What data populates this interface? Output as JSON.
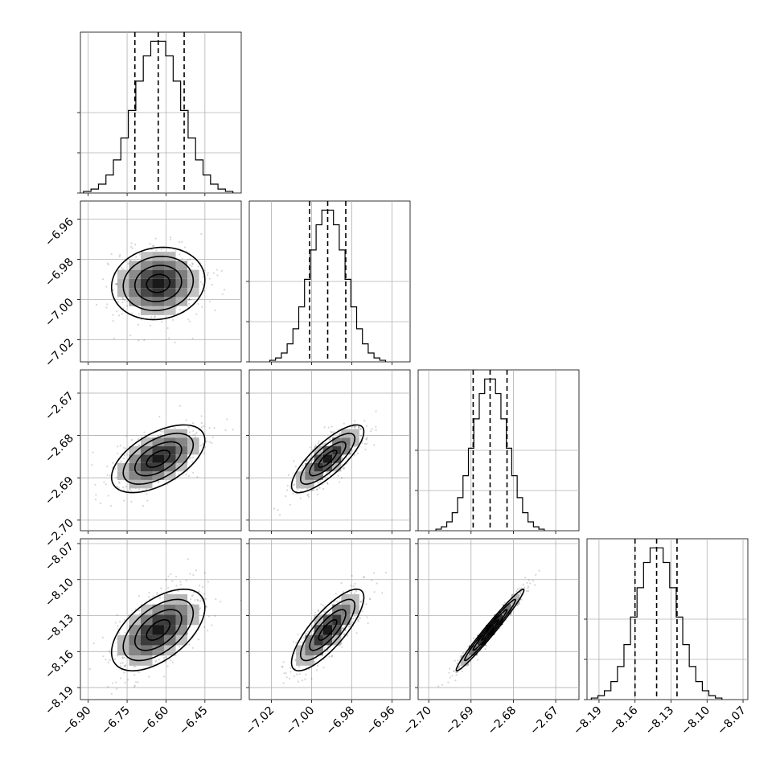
{
  "chart_data": {
    "type": "corner",
    "parameters": [
      {
        "range": [
          -6.93,
          -6.31
        ],
        "ticks": [
          -6.9,
          -6.75,
          -6.6,
          -6.45
        ],
        "tick_labels": [
          "−6.90",
          "−6.75",
          "−6.60",
          "−6.45"
        ],
        "median": -6.63,
        "q16": -6.72,
        "q84": -6.53,
        "sigma": 0.09
      },
      {
        "range": [
          -7.031,
          -6.951
        ],
        "ticks": [
          -7.02,
          -7.0,
          -6.98,
          -6.96
        ],
        "tick_labels": [
          "−7.02",
          "−7.00",
          "−6.98",
          "−6.96"
        ],
        "median": -6.992,
        "q16": -7.001,
        "q84": -6.983,
        "sigma": 0.009
      },
      {
        "range": [
          -2.7025,
          -2.6645
        ],
        "ticks": [
          -2.7,
          -2.69,
          -2.68,
          -2.67
        ],
        "tick_labels": [
          "−2.70",
          "−2.69",
          "−2.68",
          "−2.67"
        ],
        "median": -2.6855,
        "q16": -2.6895,
        "q84": -2.6815,
        "sigma": 0.004
      },
      {
        "range": [
          -8.2,
          -8.066
        ],
        "ticks": [
          -8.19,
          -8.16,
          -8.13,
          -8.1,
          -8.07
        ],
        "tick_labels": [
          "−8.19",
          "−8.16",
          "−8.13",
          "−8.10",
          "−8.07"
        ],
        "median": -8.142,
        "q16": -8.16,
        "q84": -8.125,
        "sigma": 0.017
      }
    ],
    "correlations": [
      [
        1,
        0.1,
        0.55,
        0.55
      ],
      [
        0.1,
        1,
        0.8,
        0.8
      ],
      [
        0.55,
        0.8,
        1,
        0.98
      ],
      [
        0.55,
        0.8,
        0.98,
        1
      ]
    ],
    "histogram_bins": 20,
    "contour_levels_sigma": [
      0.5,
      1.0,
      1.5,
      2.0
    ],
    "grid": true,
    "colors": {
      "ink": "#000000",
      "grid": "#b0b0b0",
      "background": "#ffffff"
    }
  }
}
